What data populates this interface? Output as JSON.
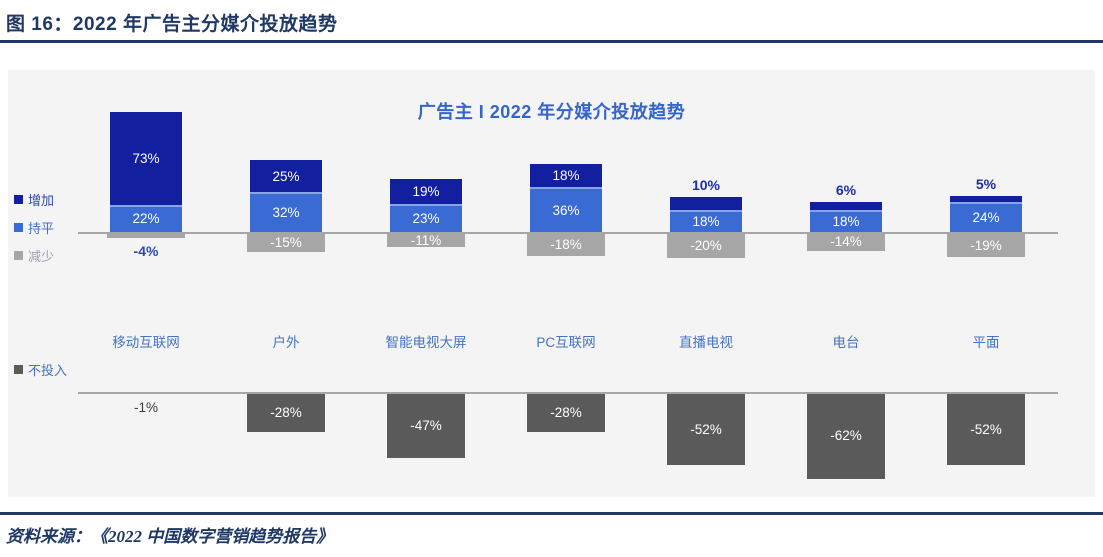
{
  "header": {
    "title": "图 16：2022 年广告主分媒介投放趋势"
  },
  "footer": {
    "source": "资料来源：《2022 中国数字营销趋势报告》"
  },
  "chart_data": {
    "type": "bar",
    "title": "广告主 I 2022 年分媒介投放趋势",
    "subtitle": "",
    "categories": [
      "移动互联网",
      "户外",
      "智能电视大屏",
      "PC互联网",
      "直播电视",
      "电台",
      "平面"
    ],
    "series": [
      {
        "name": "增加",
        "values": [
          73,
          25,
          19,
          18,
          10,
          6,
          5
        ],
        "color": "#121F9E",
        "label_color": "#2E49B5"
      },
      {
        "name": "持平",
        "values": [
          22,
          32,
          23,
          36,
          18,
          18,
          24
        ],
        "color": "#3A6AD4",
        "label_color": "#4472C4"
      },
      {
        "name": "减少",
        "values": [
          -4,
          -15,
          -11,
          -18,
          -20,
          -14,
          -19
        ],
        "color": "#A6A6A6",
        "label_color": "#9BA2B0"
      },
      {
        "name": "不投入",
        "values": [
          -1,
          -28,
          -47,
          -28,
          -52,
          -62,
          -52
        ],
        "color": "#5A5A5A",
        "label_color": "#4472C4"
      }
    ],
    "value_label_format": "{v}%",
    "legend_position": "left",
    "grid": false,
    "axes": {
      "top_chart": {
        "zero_line": true,
        "ylim": [
          -25,
          100
        ]
      },
      "bottom_chart": {
        "zero_line": true,
        "ylim": [
          -70,
          0
        ]
      }
    },
    "colors": {
      "panel_background": "#F4F4F4",
      "axis_line": "#A6A6A6",
      "category_label": "#4472C4",
      "outside_positive_label": "#1C2FA5",
      "outside_negative_label_top": "#2E49B5",
      "outside_negative_label_bottom": "#3A3A3A",
      "header_navy": "#1F3864",
      "chart_title_blue": "#3565C9"
    }
  }
}
